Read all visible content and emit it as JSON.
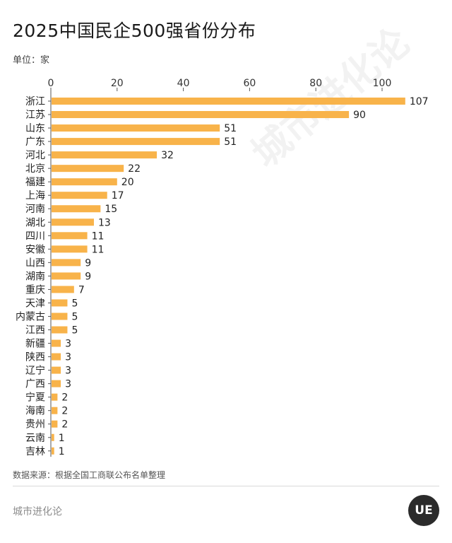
{
  "title": "2025中国民企500强省份分布",
  "unit": "单位：家",
  "source": "数据来源：根据全国工商联公布名单整理",
  "brand": "城市进化论",
  "logo_text": "UE",
  "watermark": "城市进化论",
  "colors": {
    "bar": "#F8B34A",
    "axis": "#555555",
    "text": "#222222"
  },
  "chart_data": {
    "type": "bar",
    "orientation": "horizontal",
    "title": "2025中国民企500强省份分布",
    "xlabel": "",
    "ylabel": "",
    "xlim": [
      0,
      110
    ],
    "ticks": [
      0,
      20,
      40,
      60,
      80,
      100
    ],
    "categories": [
      "浙江",
      "江苏",
      "山东",
      "广东",
      "河北",
      "北京",
      "福建",
      "上海",
      "河南",
      "湖北",
      "四川",
      "安徽",
      "山西",
      "湖南",
      "重庆",
      "天津",
      "内蒙古",
      "江西",
      "新疆",
      "陕西",
      "辽宁",
      "广西",
      "宁夏",
      "海南",
      "贵州",
      "云南",
      "吉林"
    ],
    "values": [
      107,
      90,
      51,
      51,
      32,
      22,
      20,
      17,
      15,
      13,
      11,
      11,
      9,
      9,
      7,
      5,
      5,
      5,
      3,
      3,
      3,
      3,
      2,
      2,
      2,
      1,
      1
    ]
  }
}
